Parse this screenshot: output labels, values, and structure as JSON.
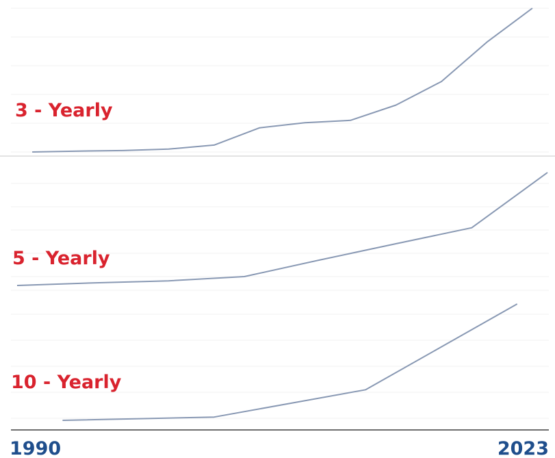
{
  "chart_data": {
    "type": "line",
    "xlabel": "",
    "ylabel": "",
    "x_start_label": "1990",
    "x_end_label": "2023",
    "line_color": "#8898b3",
    "label_color": "#d9232e",
    "axis_label_color": "#1f4e8c",
    "grid": true,
    "panels": [
      {
        "name": "3 - Yearly",
        "x": [
          1991,
          1994,
          1997,
          2000,
          2003,
          2006,
          2009,
          2012,
          2015,
          2018,
          2021,
          2024
        ],
        "values": [
          0.0,
          0.3,
          0.5,
          1.0,
          2.4,
          8.4,
          10.2,
          11.0,
          16.3,
          24.5,
          38.2,
          50.0
        ]
      },
      {
        "name": "5 - Yearly",
        "x": [
          1990,
          1995,
          2000,
          2005,
          2010,
          2015,
          2020,
          2025
        ],
        "values": [
          0.0,
          1.3,
          2.3,
          4.4,
          12.7,
          20.7,
          28.6,
          56.0
        ]
      },
      {
        "name": "10 - Yearly",
        "x": [
          1993,
          2003,
          2013,
          2023
        ],
        "values": [
          0.0,
          1.8,
          16.6,
          63.2
        ]
      }
    ]
  }
}
